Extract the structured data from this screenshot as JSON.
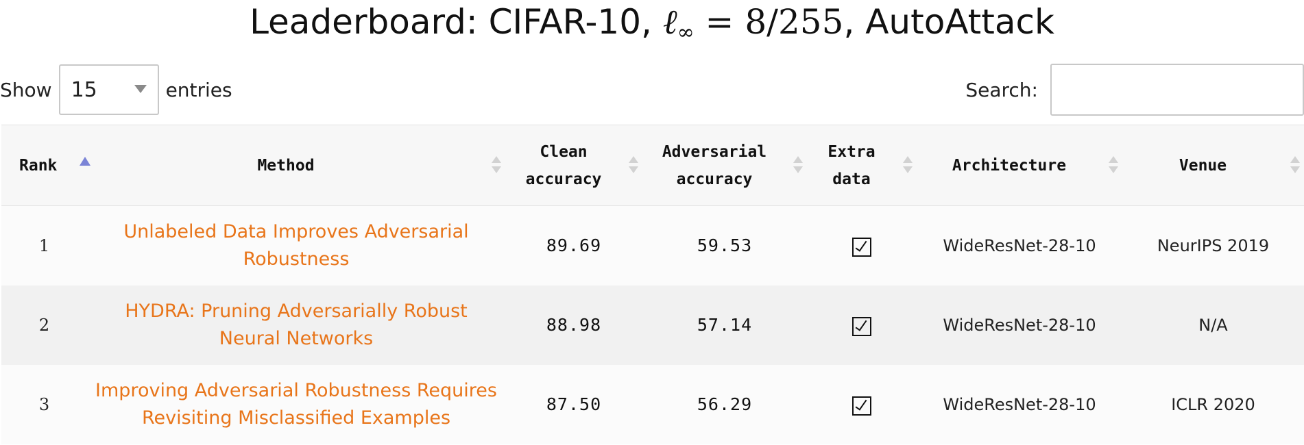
{
  "title": {
    "prefix": "Leaderboard: CIFAR-10, ",
    "norm_symbol": "ℓ",
    "norm_sub": "∞",
    "equals": " = 8/255",
    "suffix": ", AutoAttack"
  },
  "controls": {
    "show_label": "Show",
    "entries_value": "15",
    "entries_label": "entries",
    "search_label": "Search:",
    "search_value": ""
  },
  "table": {
    "columns": [
      {
        "key": "rank",
        "label": "Rank",
        "sorted": "asc"
      },
      {
        "key": "method",
        "label": "Method"
      },
      {
        "key": "clean",
        "label_line1": "Clean",
        "label_line2": "accuracy"
      },
      {
        "key": "adversarial",
        "label_line1": "Adversarial",
        "label_line2": "accuracy"
      },
      {
        "key": "extra",
        "label_line1": "Extra",
        "label_line2": "data"
      },
      {
        "key": "architecture",
        "label": "Architecture"
      },
      {
        "key": "venue",
        "label": "Venue"
      }
    ],
    "rows": [
      {
        "rank": "1",
        "method_line1": "Unlabeled Data Improves Adversarial",
        "method_line2": "Robustness",
        "clean": "89.69",
        "adversarial": "59.53",
        "extra": "☑",
        "architecture": "WideResNet-28-10",
        "venue": "NeurIPS 2019"
      },
      {
        "rank": "2",
        "method_line1": "HYDRA: Pruning Adversarially Robust",
        "method_line2": "Neural Networks",
        "clean": "88.98",
        "adversarial": "57.14",
        "extra": "☑",
        "architecture": "WideResNet-28-10",
        "venue": "N/A"
      },
      {
        "rank": "3",
        "method_line1": "Improving Adversarial Robustness Requires",
        "method_line2": "Revisiting Misclassified Examples",
        "clean": "87.50",
        "adversarial": "56.29",
        "extra": "☑",
        "architecture": "WideResNet-28-10",
        "venue": "ICLR 2020"
      }
    ]
  },
  "colors": {
    "link": "#e8751a",
    "sort_active": "#7b84d6",
    "header_bg": "#f7f7f7",
    "row_even_bg": "#f1f1f1"
  }
}
